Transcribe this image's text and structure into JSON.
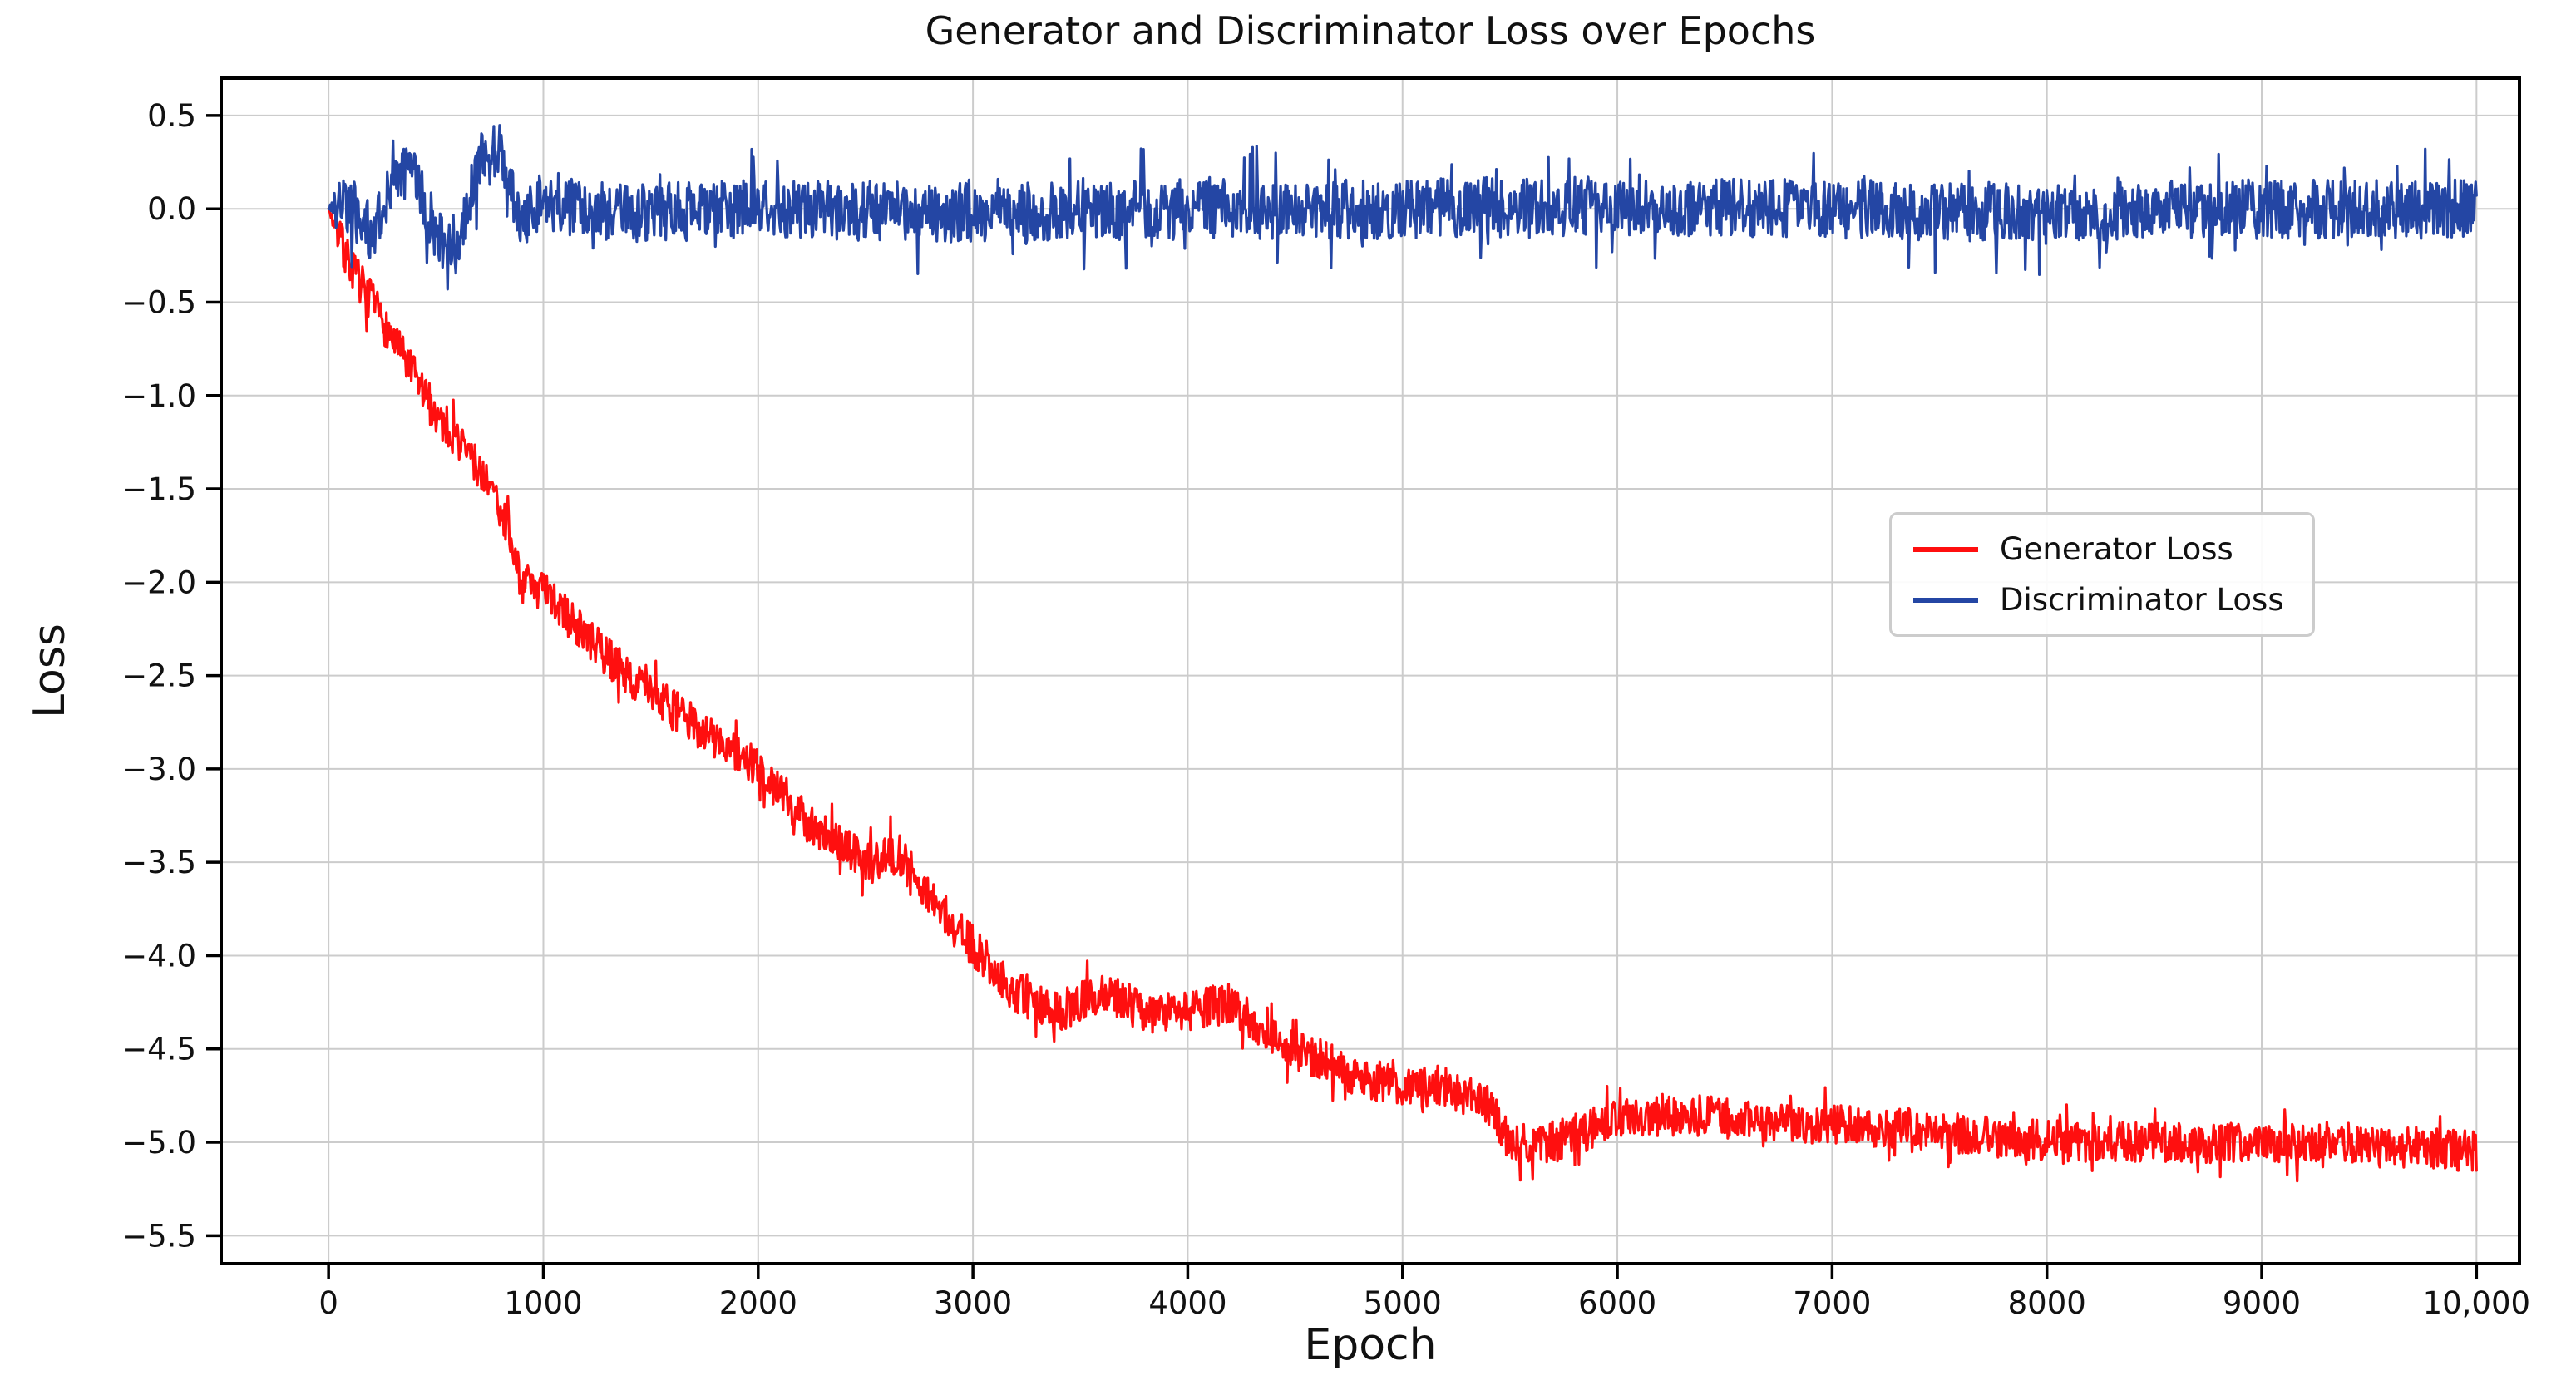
{
  "figure": {
    "background": "#ffffff",
    "spine_color": "#000000",
    "grid_color": "#cccccc",
    "text_color": "#111111"
  },
  "chart_data": {
    "type": "line",
    "title": "Generator and Discriminator Loss over Epochs",
    "xlabel": "Epoch",
    "ylabel": "Loss",
    "xlim": [
      -500,
      10200
    ],
    "ylim": [
      -5.65,
      0.7
    ],
    "grid": true,
    "legend": {
      "position": "center-right",
      "entries": [
        "Generator Loss",
        "Discriminator Loss"
      ]
    },
    "xticks": {
      "values": [
        0,
        1000,
        2000,
        3000,
        4000,
        5000,
        6000,
        7000,
        8000,
        9000,
        10000
      ],
      "labels": [
        "0",
        "1000",
        "2000",
        "3000",
        "4000",
        "5000",
        "6000",
        "7000",
        "8000",
        "9000",
        "10,000"
      ]
    },
    "yticks": {
      "values": [
        0.5,
        0.0,
        -0.5,
        -1.0,
        -1.5,
        -2.0,
        -2.5,
        -3.0,
        -3.5,
        -4.0,
        -4.5,
        -5.0,
        -5.5
      ],
      "labels": [
        "0.5",
        "0.0",
        "−0.5",
        "−1.0",
        "−1.5",
        "−2.0",
        "−2.5",
        "−3.0",
        "−3.5",
        "−4.0",
        "−4.5",
        "−5.0",
        "−5.5"
      ]
    },
    "series": [
      {
        "name": "Generator Loss",
        "color": "#ff0f0f",
        "x_range": [
          0,
          10000
        ],
        "samples": 2600,
        "noise": 0.11,
        "spike_prob": 0.05,
        "spike_mult": 1.9,
        "seed": 7,
        "trend": {
          "x": [
            0,
            100,
            250,
            400,
            500,
            650,
            800,
            900,
            1000,
            1250,
            1500,
            1750,
            2000,
            2250,
            2500,
            2650,
            2800,
            3000,
            3200,
            3400,
            3600,
            3800,
            4000,
            4200,
            4400,
            4600,
            4800,
            5000,
            5200,
            5400,
            5500,
            5700,
            6000,
            6300,
            6600,
            7000,
            7400,
            7800,
            8200,
            8600,
            9000,
            9400,
            9700,
            10000
          ],
          "y": [
            0,
            -0.3,
            -0.6,
            -0.9,
            -1.1,
            -1.3,
            -1.6,
            -2.0,
            -2.05,
            -2.35,
            -2.6,
            -2.8,
            -3.0,
            -3.3,
            -3.5,
            -3.45,
            -3.7,
            -3.95,
            -4.2,
            -4.3,
            -4.2,
            -4.3,
            -4.3,
            -4.25,
            -4.45,
            -4.55,
            -4.65,
            -4.7,
            -4.7,
            -4.8,
            -5.0,
            -5.0,
            -4.88,
            -4.85,
            -4.88,
            -4.9,
            -4.93,
            -4.98,
            -5.0,
            -5.0,
            -5.0,
            -5.0,
            -5.02,
            -5.05
          ]
        }
      },
      {
        "name": "Discriminator Loss",
        "color": "#2446a4",
        "x_range": [
          0,
          10000
        ],
        "samples": 2600,
        "noise": 0.16,
        "spike_prob": 0.05,
        "spike_mult": 2.1,
        "seed": 21,
        "trend": {
          "x": [
            0,
            100,
            200,
            300,
            400,
            500,
            600,
            700,
            800,
            900,
            1000,
            1200,
            1500,
            2000,
            3000,
            4000,
            5000,
            6000,
            7000,
            8000,
            9000,
            10000
          ],
          "y": [
            0,
            0.02,
            -0.12,
            0.15,
            0.2,
            -0.15,
            -0.2,
            0.25,
            0.3,
            -0.08,
            0.05,
            0,
            -0.02,
            0,
            -0.02,
            0,
            0,
            0.02,
            0,
            -0.02,
            0,
            0
          ]
        }
      }
    ]
  }
}
